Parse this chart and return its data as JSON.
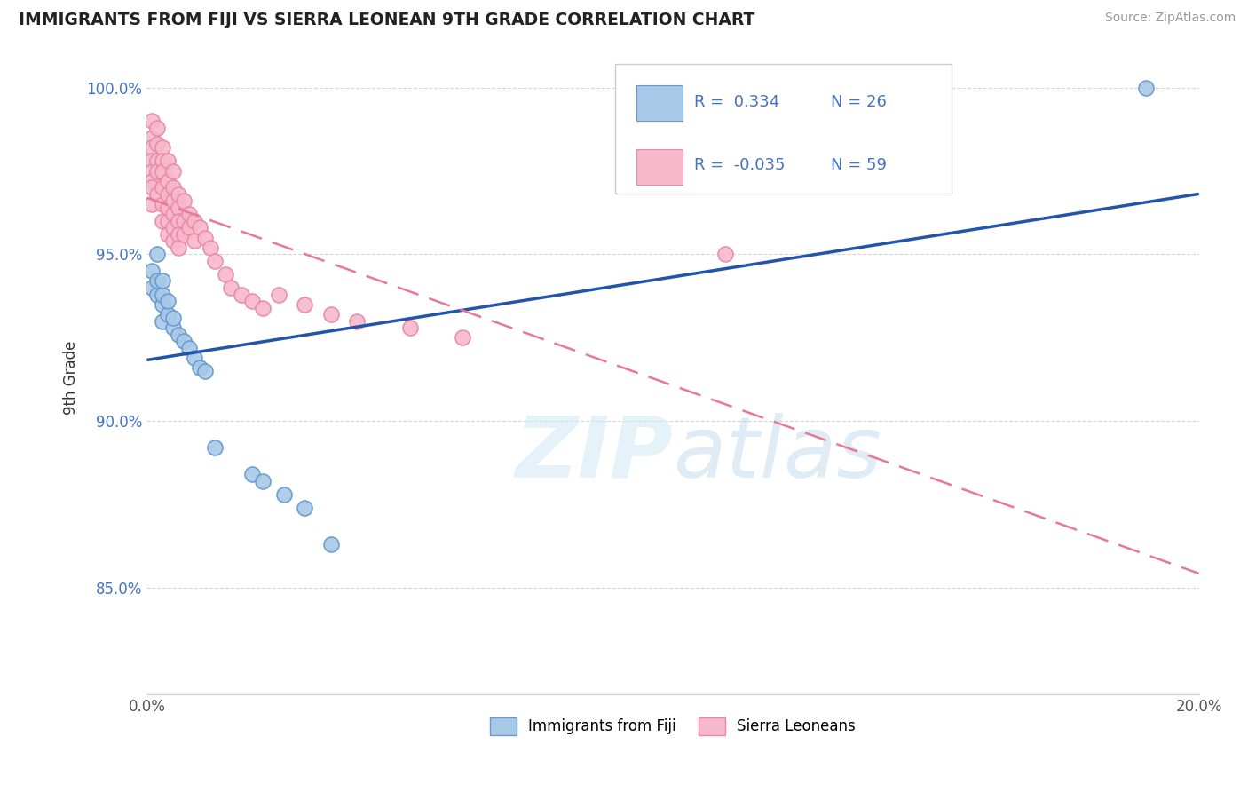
{
  "title": "IMMIGRANTS FROM FIJI VS SIERRA LEONEAN 9TH GRADE CORRELATION CHART",
  "source": "Source: ZipAtlas.com",
  "ylabel": "9th Grade",
  "xlim": [
    0.0,
    0.2
  ],
  "ylim": [
    0.818,
    1.008
  ],
  "xticks": [
    0.0,
    0.05,
    0.1,
    0.15,
    0.2
  ],
  "xtick_labels": [
    "0.0%",
    "",
    "",
    "",
    "20.0%"
  ],
  "yticks": [
    0.85,
    0.9,
    0.95,
    1.0
  ],
  "ytick_labels": [
    "85.0%",
    "90.0%",
    "95.0%",
    "100.0%"
  ],
  "fiji_color": "#a8c8e8",
  "fiji_edge_color": "#6699cc",
  "sierra_color": "#f8b8cc",
  "sierra_edge_color": "#e888aa",
  "trend_fiji_color": "#2255aa",
  "trend_sierra_color": "#e87898",
  "background_color": "#ffffff",
  "grid_color": "#cccccc",
  "R_fiji": "0.334",
  "N_fiji": "26",
  "R_sierra": "-0.035",
  "N_sierra": "59",
  "legend_label_fiji": "Immigrants from Fiji",
  "legend_label_sierra": "Sierra Leoneans",
  "text_color_blue": "#4472c4",
  "fiji_points_x": [
    0.001,
    0.001,
    0.002,
    0.002,
    0.002,
    0.003,
    0.003,
    0.003,
    0.003,
    0.004,
    0.004,
    0.005,
    0.005,
    0.006,
    0.007,
    0.008,
    0.009,
    0.01,
    0.011,
    0.013,
    0.02,
    0.022,
    0.026,
    0.03,
    0.035,
    0.19
  ],
  "fiji_points_y": [
    0.94,
    0.945,
    0.938,
    0.942,
    0.95,
    0.93,
    0.935,
    0.938,
    0.942,
    0.932,
    0.936,
    0.928,
    0.931,
    0.926,
    0.924,
    0.922,
    0.919,
    0.916,
    0.915,
    0.892,
    0.884,
    0.882,
    0.878,
    0.874,
    0.863,
    1.0
  ],
  "sierra_points_x": [
    0.001,
    0.001,
    0.001,
    0.001,
    0.001,
    0.001,
    0.001,
    0.001,
    0.002,
    0.002,
    0.002,
    0.002,
    0.002,
    0.003,
    0.003,
    0.003,
    0.003,
    0.003,
    0.003,
    0.004,
    0.004,
    0.004,
    0.004,
    0.004,
    0.004,
    0.005,
    0.005,
    0.005,
    0.005,
    0.005,
    0.005,
    0.006,
    0.006,
    0.006,
    0.006,
    0.006,
    0.007,
    0.007,
    0.007,
    0.008,
    0.008,
    0.009,
    0.009,
    0.01,
    0.011,
    0.012,
    0.013,
    0.015,
    0.016,
    0.018,
    0.02,
    0.022,
    0.025,
    0.03,
    0.035,
    0.04,
    0.05,
    0.06,
    0.11
  ],
  "sierra_points_y": [
    0.99,
    0.985,
    0.982,
    0.978,
    0.975,
    0.972,
    0.97,
    0.965,
    0.988,
    0.983,
    0.978,
    0.975,
    0.968,
    0.982,
    0.978,
    0.975,
    0.97,
    0.965,
    0.96,
    0.978,
    0.972,
    0.968,
    0.964,
    0.96,
    0.956,
    0.975,
    0.97,
    0.966,
    0.962,
    0.958,
    0.954,
    0.968,
    0.964,
    0.96,
    0.956,
    0.952,
    0.966,
    0.96,
    0.956,
    0.962,
    0.958,
    0.96,
    0.954,
    0.958,
    0.955,
    0.952,
    0.948,
    0.944,
    0.94,
    0.938,
    0.936,
    0.934,
    0.938,
    0.935,
    0.932,
    0.93,
    0.928,
    0.925,
    0.95
  ]
}
